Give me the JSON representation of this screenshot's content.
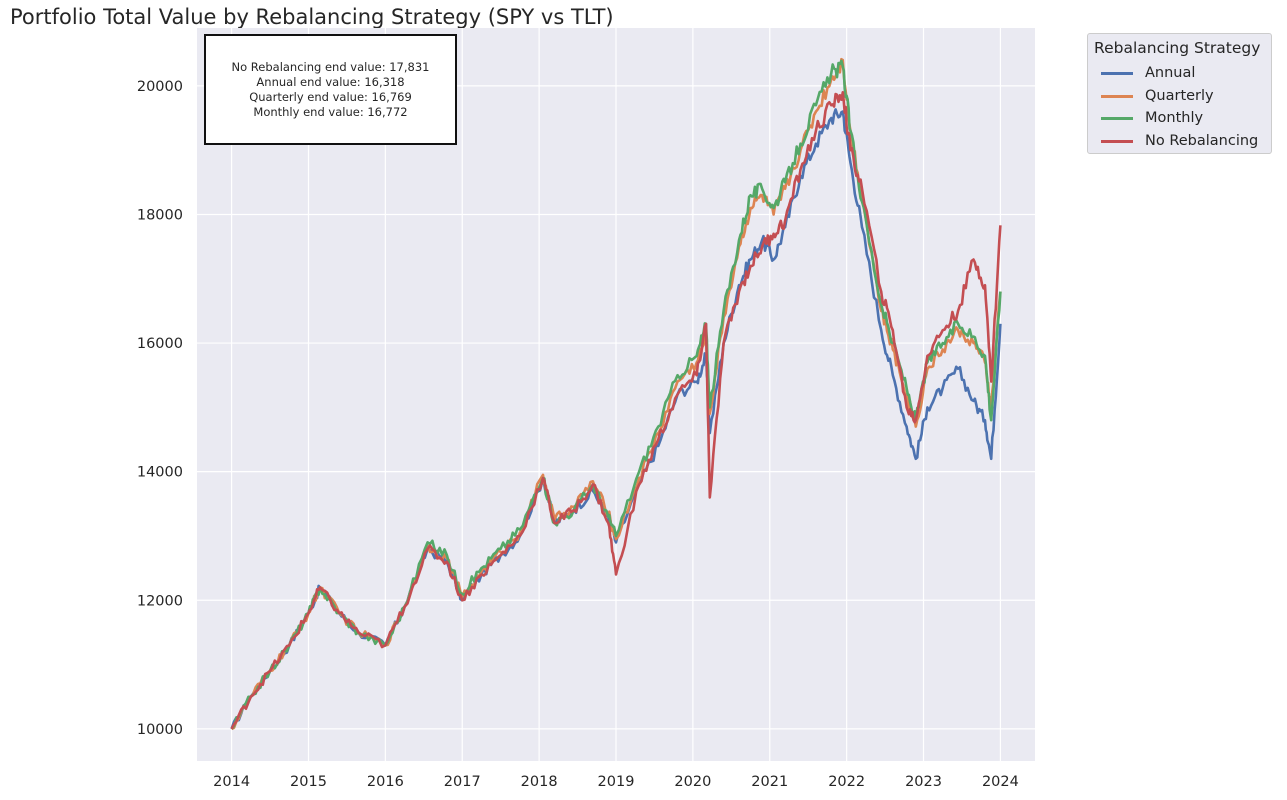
{
  "chart_data": {
    "type": "line",
    "title": "Portfolio Total Value by Rebalancing Strategy (SPY vs TLT)",
    "xlabel": "",
    "ylabel": "",
    "xlim": [
      2013.55,
      2024.45
    ],
    "ylim": [
      9500,
      20900
    ],
    "x_ticks": [
      "2014",
      "2015",
      "2016",
      "2017",
      "2018",
      "2019",
      "2020",
      "2021",
      "2022",
      "2023",
      "2024"
    ],
    "y_ticks": [
      10000,
      12000,
      14000,
      16000,
      18000,
      20000
    ],
    "grid": true,
    "legend": {
      "title": "Rebalancing Strategy",
      "placement": "outside-top-right",
      "entries": [
        "Annual",
        "Quarterly",
        "Monthly",
        "No Rebalancing"
      ]
    },
    "annotation": [
      "No Rebalancing end value: 17,831",
      "Annual end value: 16,318",
      "Quarterly end value: 16,769",
      "Monthly end value: 16,772"
    ],
    "series": [
      {
        "name": "Annual",
        "color": "#4c72b0",
        "x": [
          2014.0,
          2014.25,
          2014.5,
          2014.75,
          2015.0,
          2015.15,
          2015.4,
          2015.65,
          2016.0,
          2016.25,
          2016.55,
          2016.8,
          2017.0,
          2017.25,
          2017.5,
          2017.75,
          2018.05,
          2018.2,
          2018.45,
          2018.7,
          2018.9,
          2019.0,
          2019.3,
          2019.55,
          2019.8,
          2020.05,
          2020.17,
          2020.22,
          2020.4,
          2020.6,
          2020.75,
          2020.9,
          2021.05,
          2021.2,
          2021.4,
          2021.6,
          2021.8,
          2021.95,
          2022.05,
          2022.2,
          2022.45,
          2022.6,
          2022.78,
          2022.9,
          2023.05,
          2023.25,
          2023.45,
          2023.65,
          2023.8,
          2023.88,
          2024.0
        ],
        "y": [
          10000,
          10500,
          10900,
          11300,
          11800,
          12200,
          11800,
          11500,
          11300,
          11900,
          12800,
          12600,
          12000,
          12400,
          12700,
          13000,
          13900,
          13200,
          13400,
          13700,
          13300,
          12900,
          13800,
          14400,
          15200,
          15400,
          15800,
          14600,
          16000,
          16900,
          17300,
          17600,
          17300,
          17800,
          18600,
          19100,
          19500,
          19600,
          18800,
          17800,
          16200,
          15500,
          14700,
          14200,
          15000,
          15300,
          15600,
          15100,
          14800,
          14200,
          16300
        ]
      },
      {
        "name": "Quarterly",
        "color": "#dd8452",
        "x": [
          2014.0,
          2014.25,
          2014.5,
          2014.75,
          2015.0,
          2015.15,
          2015.4,
          2015.65,
          2016.0,
          2016.25,
          2016.55,
          2016.8,
          2017.0,
          2017.25,
          2017.5,
          2017.75,
          2018.05,
          2018.2,
          2018.45,
          2018.7,
          2018.9,
          2019.0,
          2019.3,
          2019.55,
          2019.8,
          2020.05,
          2020.17,
          2020.22,
          2020.4,
          2020.6,
          2020.75,
          2020.9,
          2021.05,
          2021.2,
          2021.4,
          2021.6,
          2021.8,
          2021.95,
          2022.05,
          2022.2,
          2022.45,
          2022.6,
          2022.78,
          2022.9,
          2023.05,
          2023.25,
          2023.45,
          2023.65,
          2023.8,
          2023.88,
          2024.0
        ],
        "y": [
          10000,
          10500,
          10900,
          11300,
          11800,
          12200,
          11800,
          11500,
          11300,
          11900,
          12850,
          12650,
          12050,
          12450,
          12750,
          13050,
          13950,
          13250,
          13450,
          13850,
          13350,
          12950,
          13900,
          14600,
          15400,
          15700,
          16100,
          14900,
          16400,
          17500,
          18100,
          18300,
          18000,
          18400,
          19000,
          19600,
          20100,
          20400,
          19300,
          18300,
          16500,
          15900,
          15200,
          14700,
          15600,
          15900,
          16200,
          16000,
          15700,
          15000,
          16800
        ]
      },
      {
        "name": "Monthly",
        "color": "#55a868",
        "x": [
          2014.0,
          2014.25,
          2014.5,
          2014.75,
          2015.0,
          2015.15,
          2015.4,
          2015.65,
          2016.0,
          2016.25,
          2016.55,
          2016.8,
          2017.0,
          2017.25,
          2017.5,
          2017.75,
          2018.05,
          2018.2,
          2018.45,
          2018.7,
          2018.9,
          2019.0,
          2019.3,
          2019.55,
          2019.8,
          2020.05,
          2020.17,
          2020.22,
          2020.4,
          2020.6,
          2020.75,
          2020.9,
          2021.05,
          2021.2,
          2021.4,
          2021.6,
          2021.8,
          2021.95,
          2022.05,
          2022.2,
          2022.45,
          2022.6,
          2022.78,
          2022.9,
          2023.05,
          2023.25,
          2023.45,
          2023.65,
          2023.8,
          2023.88,
          2024.0
        ],
        "y": [
          10000,
          10500,
          10900,
          11300,
          11800,
          12200,
          11800,
          11500,
          11300,
          11900,
          12900,
          12700,
          12100,
          12500,
          12800,
          13100,
          13900,
          13200,
          13400,
          13800,
          13300,
          13000,
          14000,
          14700,
          15500,
          15800,
          16300,
          15000,
          16500,
          17600,
          18300,
          18400,
          18100,
          18500,
          19100,
          19700,
          20200,
          20300,
          19300,
          18200,
          16600,
          16000,
          15300,
          14800,
          15700,
          16000,
          16300,
          16100,
          15800,
          14800,
          16800
        ]
      },
      {
        "name": "No Rebalancing",
        "color": "#c44e52",
        "x": [
          2014.0,
          2014.25,
          2014.5,
          2014.75,
          2015.0,
          2015.15,
          2015.4,
          2015.65,
          2016.0,
          2016.25,
          2016.55,
          2016.8,
          2017.0,
          2017.25,
          2017.5,
          2017.75,
          2018.05,
          2018.2,
          2018.45,
          2018.7,
          2018.9,
          2019.0,
          2019.3,
          2019.55,
          2019.8,
          2020.05,
          2020.17,
          2020.22,
          2020.4,
          2020.6,
          2020.75,
          2020.9,
          2021.05,
          2021.2,
          2021.4,
          2021.6,
          2021.8,
          2021.95,
          2022.05,
          2022.2,
          2022.45,
          2022.6,
          2022.78,
          2022.9,
          2023.05,
          2023.25,
          2023.45,
          2023.65,
          2023.8,
          2023.88,
          2024.0
        ],
        "y": [
          10000,
          10500,
          10900,
          11300,
          11800,
          12200,
          11800,
          11500,
          11300,
          11900,
          12800,
          12600,
          12000,
          12400,
          12700,
          13000,
          13900,
          13200,
          13400,
          13800,
          13200,
          12400,
          13800,
          14500,
          15200,
          15500,
          16300,
          13600,
          16000,
          16800,
          17200,
          17500,
          17700,
          17900,
          18700,
          19300,
          19700,
          19900,
          19000,
          18400,
          16800,
          16200,
          15000,
          14800,
          15800,
          16200,
          16500,
          17300,
          16900,
          15400,
          17831
        ]
      }
    ]
  }
}
